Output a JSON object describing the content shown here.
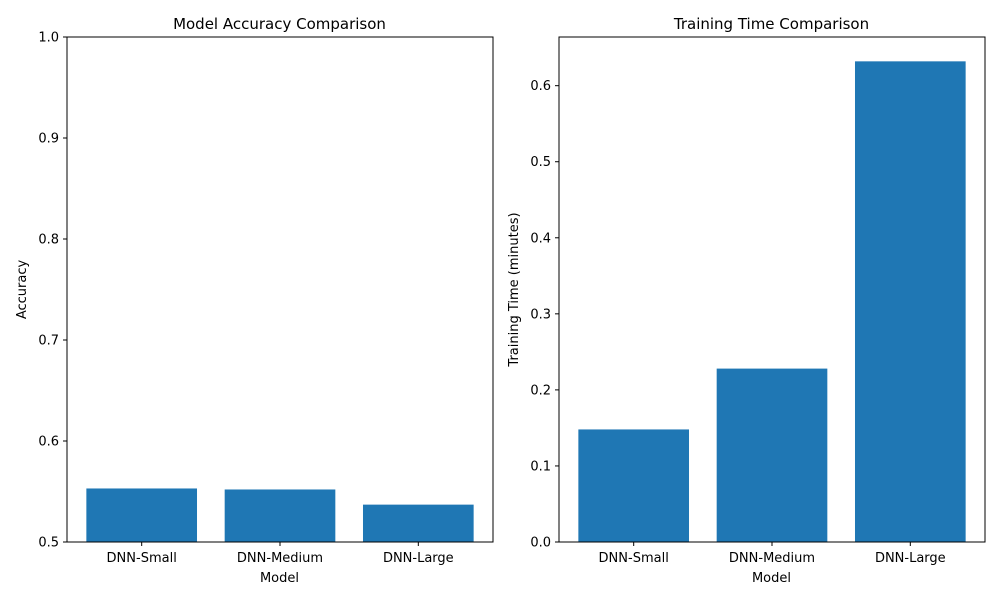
{
  "chart_data": [
    {
      "type": "bar",
      "title": "Model Accuracy Comparison",
      "xlabel": "Model",
      "ylabel": "Accuracy",
      "categories": [
        "DNN-Small",
        "DNN-Medium",
        "DNN-Large"
      ],
      "values": [
        0.553,
        0.552,
        0.537
      ],
      "ylim": [
        0.5,
        1.0
      ],
      "yticks": [
        "0.5",
        "0.6",
        "0.7",
        "0.8",
        "0.9",
        "1.0"
      ],
      "color": "#1f77b4",
      "grid": false
    },
    {
      "type": "bar",
      "title": "Training Time Comparison",
      "xlabel": "Model",
      "ylabel": "Training Time (minutes)",
      "categories": [
        "DNN-Small",
        "DNN-Medium",
        "DNN-Large"
      ],
      "values": [
        0.148,
        0.228,
        0.632
      ],
      "ylim": [
        0.0,
        0.664
      ],
      "yticks": [
        "0.0",
        "0.1",
        "0.2",
        "0.3",
        "0.4",
        "0.5",
        "0.6"
      ],
      "color": "#1f77b4",
      "grid": false
    }
  ]
}
